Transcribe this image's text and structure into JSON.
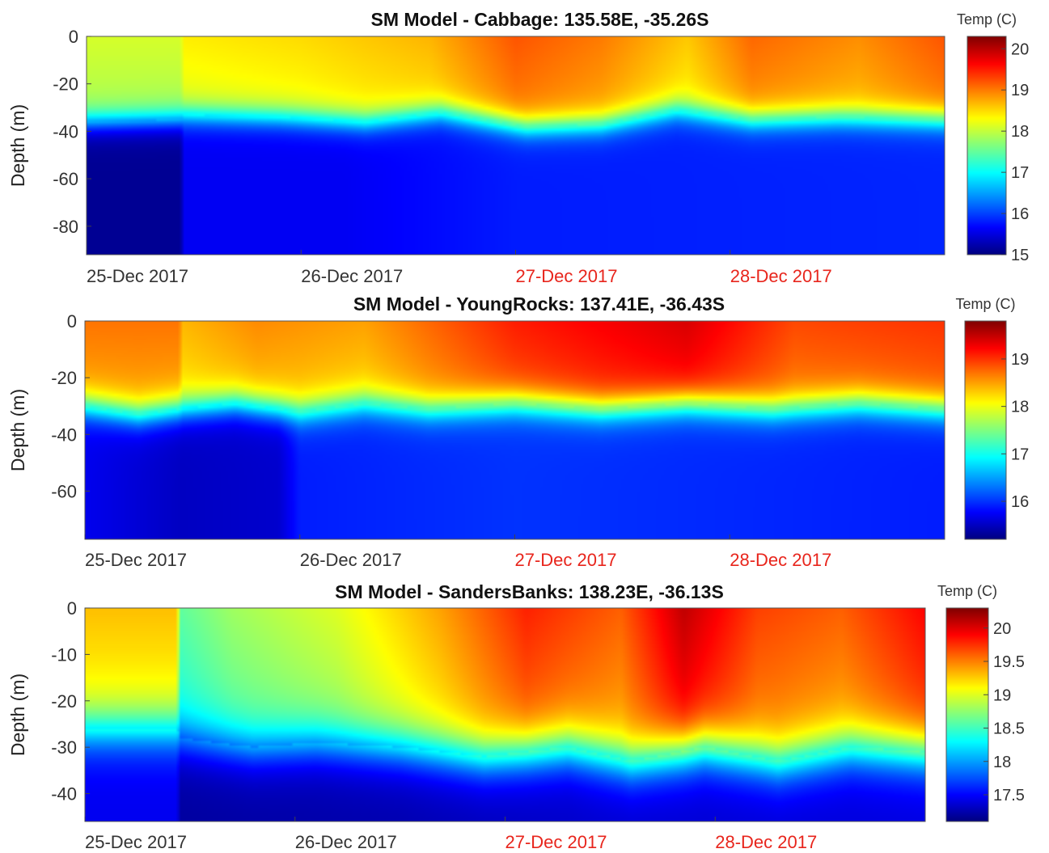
{
  "chart_data": [
    {
      "type": "heatmap",
      "title": "SM Model - Cabbage: 135.58E, -35.26S",
      "ylabel": "Depth (m)",
      "colorbar_label": "Temp (C)",
      "colormap": "jet",
      "xlim": [
        "25-Dec 2017",
        "29-Dec 2017"
      ],
      "ylim": [
        -92,
        0
      ],
      "x_ticks": [
        {
          "label": "25-Dec 2017",
          "value": 0,
          "color": "#333333"
        },
        {
          "label": "26-Dec 2017",
          "value": 1,
          "color": "#333333"
        },
        {
          "label": "27-Dec 2017",
          "value": 2,
          "color": "#e8251c"
        },
        {
          "label": "28-Dec 2017",
          "value": 3,
          "color": "#e8251c"
        }
      ],
      "y_ticks": [
        {
          "value": 0,
          "label": "0"
        },
        {
          "value": -20,
          "label": "-20"
        },
        {
          "value": -40,
          "label": "-40"
        },
        {
          "value": -60,
          "label": "-60"
        },
        {
          "value": -80,
          "label": "-80"
        }
      ],
      "clim": [
        15,
        20.3
      ],
      "colorbar_ticks": [
        {
          "value": 15,
          "label": "15"
        },
        {
          "value": 16,
          "label": "16"
        },
        {
          "value": 17,
          "label": "17"
        },
        {
          "value": 18,
          "label": "18"
        },
        {
          "value": 19,
          "label": "19"
        },
        {
          "value": 20,
          "label": "20"
        }
      ],
      "surface_temp": [
        {
          "day": 0.0,
          "value": 18.1
        },
        {
          "day": 0.44,
          "value": 18.1
        },
        {
          "day": 0.45,
          "value": 18.4
        },
        {
          "day": 1.0,
          "value": 18.5
        },
        {
          "day": 1.6,
          "value": 18.7
        },
        {
          "day": 2.0,
          "value": 19.2
        },
        {
          "day": 2.4,
          "value": 19.0
        },
        {
          "day": 2.8,
          "value": 18.6
        },
        {
          "day": 3.1,
          "value": 19.1
        },
        {
          "day": 3.6,
          "value": 18.9
        },
        {
          "day": 4.0,
          "value": 19.2
        }
      ],
      "thermocline_depth": [
        {
          "day": 0.0,
          "value": -36
        },
        {
          "day": 0.44,
          "value": -35
        },
        {
          "day": 0.45,
          "value": -33
        },
        {
          "day": 0.9,
          "value": -34
        },
        {
          "day": 1.3,
          "value": -36
        },
        {
          "day": 1.65,
          "value": -32
        },
        {
          "day": 2.05,
          "value": -38
        },
        {
          "day": 2.4,
          "value": -37
        },
        {
          "day": 2.75,
          "value": -31
        },
        {
          "day": 3.1,
          "value": -35
        },
        {
          "day": 3.5,
          "value": -34
        },
        {
          "day": 4.0,
          "value": -35
        }
      ],
      "bottom_temp": [
        {
          "day": 0.0,
          "value": 15.1
        },
        {
          "day": 0.44,
          "value": 15.1
        },
        {
          "day": 0.45,
          "value": 15.6
        },
        {
          "day": 1.2,
          "value": 15.6
        },
        {
          "day": 2.0,
          "value": 15.8
        },
        {
          "day": 4.0,
          "value": 15.85
        }
      ]
    },
    {
      "type": "heatmap",
      "title": "SM Model - YoungRocks: 137.41E, -36.43S",
      "ylabel": "Depth (m)",
      "colorbar_label": "Temp (C)",
      "colormap": "jet",
      "xlim": [
        "25-Dec 2017",
        "29-Dec 2017"
      ],
      "ylim": [
        -77,
        0
      ],
      "x_ticks": [
        {
          "label": "25-Dec 2017",
          "value": 0,
          "color": "#333333"
        },
        {
          "label": "26-Dec 2017",
          "value": 1,
          "color": "#333333"
        },
        {
          "label": "27-Dec 2017",
          "value": 2,
          "color": "#e8251c"
        },
        {
          "label": "28-Dec 2017",
          "value": 3,
          "color": "#e8251c"
        }
      ],
      "y_ticks": [
        {
          "value": 0,
          "label": "0"
        },
        {
          "value": -20,
          "label": "-20"
        },
        {
          "value": -40,
          "label": "-40"
        },
        {
          "value": -60,
          "label": "-60"
        }
      ],
      "clim": [
        15.2,
        19.8
      ],
      "colorbar_ticks": [
        {
          "value": 16,
          "label": "16"
        },
        {
          "value": 17,
          "label": "17"
        },
        {
          "value": 18,
          "label": "18"
        },
        {
          "value": 19,
          "label": "19"
        }
      ],
      "surface_temp": [
        {
          "day": 0.0,
          "value": 18.7
        },
        {
          "day": 0.44,
          "value": 18.7
        },
        {
          "day": 0.45,
          "value": 18.4
        },
        {
          "day": 0.8,
          "value": 18.6
        },
        {
          "day": 1.3,
          "value": 18.5
        },
        {
          "day": 2.0,
          "value": 19.1
        },
        {
          "day": 2.8,
          "value": 19.4
        },
        {
          "day": 3.3,
          "value": 18.9
        },
        {
          "day": 4.0,
          "value": 19.0
        }
      ],
      "thermocline_depth": [
        {
          "day": 0.0,
          "value": -30
        },
        {
          "day": 0.25,
          "value": -33
        },
        {
          "day": 0.45,
          "value": -31
        },
        {
          "day": 0.7,
          "value": -29
        },
        {
          "day": 1.0,
          "value": -32
        },
        {
          "day": 1.3,
          "value": -29
        },
        {
          "day": 1.6,
          "value": -31
        },
        {
          "day": 2.0,
          "value": -29
        },
        {
          "day": 2.4,
          "value": -31
        },
        {
          "day": 2.8,
          "value": -29
        },
        {
          "day": 3.2,
          "value": -31
        },
        {
          "day": 3.6,
          "value": -29
        },
        {
          "day": 4.0,
          "value": -31
        }
      ],
      "bottom_temp": [
        {
          "day": 0.0,
          "value": 15.7
        },
        {
          "day": 0.45,
          "value": 15.5
        },
        {
          "day": 0.9,
          "value": 15.55
        },
        {
          "day": 1.0,
          "value": 15.9
        },
        {
          "day": 2.0,
          "value": 16.0
        },
        {
          "day": 4.0,
          "value": 15.9
        }
      ]
    },
    {
      "type": "heatmap",
      "title": "SM Model - SandersBanks: 138.23E, -36.13S",
      "ylabel": "Depth (m)",
      "colorbar_label": "Temp (C)",
      "colormap": "jet",
      "xlim": [
        "25-Dec 2017",
        "29-Dec 2017"
      ],
      "ylim": [
        -46,
        0
      ],
      "x_ticks": [
        {
          "label": "25-Dec 2017",
          "value": 0,
          "color": "#333333"
        },
        {
          "label": "26-Dec 2017",
          "value": 1,
          "color": "#333333"
        },
        {
          "label": "27-Dec 2017",
          "value": 2,
          "color": "#e8251c"
        },
        {
          "label": "28-Dec 2017",
          "value": 3,
          "color": "#e8251c"
        }
      ],
      "y_ticks": [
        {
          "value": 0,
          "label": "0"
        },
        {
          "value": -10,
          "label": "-10"
        },
        {
          "value": -20,
          "label": "-20"
        },
        {
          "value": -30,
          "label": "-30"
        },
        {
          "value": -40,
          "label": "-40"
        }
      ],
      "clim": [
        17.1,
        20.3
      ],
      "colorbar_ticks": [
        {
          "value": 17.5,
          "label": "17.5"
        },
        {
          "value": 18,
          "label": "18"
        },
        {
          "value": 18.5,
          "label": "18.5"
        },
        {
          "value": 19,
          "label": "19"
        },
        {
          "value": 19.5,
          "label": "19.5"
        },
        {
          "value": 20,
          "label": "20"
        }
      ],
      "surface_temp": [
        {
          "day": 0.0,
          "value": 19.3
        },
        {
          "day": 0.44,
          "value": 19.3
        },
        {
          "day": 0.45,
          "value": 18.6
        },
        {
          "day": 0.7,
          "value": 18.8
        },
        {
          "day": 1.2,
          "value": 19.0
        },
        {
          "day": 1.7,
          "value": 19.4
        },
        {
          "day": 2.1,
          "value": 19.8
        },
        {
          "day": 2.55,
          "value": 19.6
        },
        {
          "day": 2.85,
          "value": 20.1
        },
        {
          "day": 3.2,
          "value": 19.7
        },
        {
          "day": 3.6,
          "value": 19.6
        },
        {
          "day": 4.0,
          "value": 19.9
        }
      ],
      "thermocline_depth": [
        {
          "day": 0.0,
          "value": -26
        },
        {
          "day": 0.44,
          "value": -26
        },
        {
          "day": 0.45,
          "value": -28
        },
        {
          "day": 0.8,
          "value": -30
        },
        {
          "day": 1.1,
          "value": -29
        },
        {
          "day": 1.5,
          "value": -30
        },
        {
          "day": 1.9,
          "value": -32
        },
        {
          "day": 2.3,
          "value": -30
        },
        {
          "day": 2.6,
          "value": -33
        },
        {
          "day": 2.95,
          "value": -30
        },
        {
          "day": 3.3,
          "value": -33
        },
        {
          "day": 3.65,
          "value": -30
        },
        {
          "day": 4.0,
          "value": -31
        }
      ],
      "bottom_temp": [
        {
          "day": 0.0,
          "value": 17.45
        },
        {
          "day": 0.44,
          "value": 17.45
        },
        {
          "day": 0.45,
          "value": 17.2
        },
        {
          "day": 1.5,
          "value": 17.25
        },
        {
          "day": 2.5,
          "value": 17.35
        },
        {
          "day": 4.0,
          "value": 17.4
        }
      ]
    }
  ]
}
